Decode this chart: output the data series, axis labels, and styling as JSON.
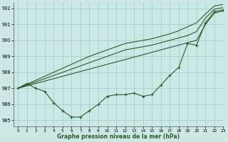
{
  "title": "Graphe pression niveau de la mer (hPa)",
  "background_color": "#cce8e4",
  "grid_color": "#99cccc",
  "line_color": "#2d5a2d",
  "xlim": [
    -0.5,
    23
  ],
  "ylim": [
    984.6,
    992.4
  ],
  "yticks": [
    985,
    986,
    987,
    988,
    989,
    990,
    991,
    992
  ],
  "xticks": [
    0,
    1,
    2,
    3,
    4,
    5,
    6,
    7,
    8,
    9,
    10,
    11,
    12,
    13,
    14,
    15,
    16,
    17,
    18,
    19,
    20,
    21,
    22,
    23
  ],
  "observed": [
    987.0,
    987.3,
    987.0,
    986.8,
    986.1,
    985.6,
    985.2,
    985.2,
    985.6,
    986.0,
    986.5,
    986.6,
    986.6,
    986.7,
    986.5,
    986.6,
    987.2,
    987.8,
    988.3,
    989.8,
    989.7,
    991.1,
    991.8,
    991.9
  ],
  "forecast1": [
    987.0,
    987.15,
    987.3,
    987.45,
    987.6,
    987.75,
    987.9,
    988.05,
    988.2,
    988.35,
    988.5,
    988.65,
    988.8,
    988.95,
    989.1,
    989.25,
    989.4,
    989.55,
    989.7,
    989.85,
    990.0,
    991.0,
    991.7,
    991.85
  ],
  "forecast2": [
    987.0,
    987.2,
    987.4,
    987.6,
    987.8,
    988.0,
    988.2,
    988.4,
    988.6,
    988.8,
    989.0,
    989.2,
    989.4,
    989.5,
    989.6,
    989.7,
    989.85,
    990.0,
    990.15,
    990.3,
    990.55,
    991.4,
    991.95,
    992.05
  ],
  "forecast3": [
    987.0,
    987.25,
    987.5,
    987.75,
    988.0,
    988.25,
    988.5,
    988.75,
    989.0,
    989.2,
    989.4,
    989.6,
    989.8,
    989.9,
    990.0,
    990.1,
    990.25,
    990.4,
    990.6,
    990.85,
    991.1,
    991.65,
    992.15,
    992.25
  ]
}
